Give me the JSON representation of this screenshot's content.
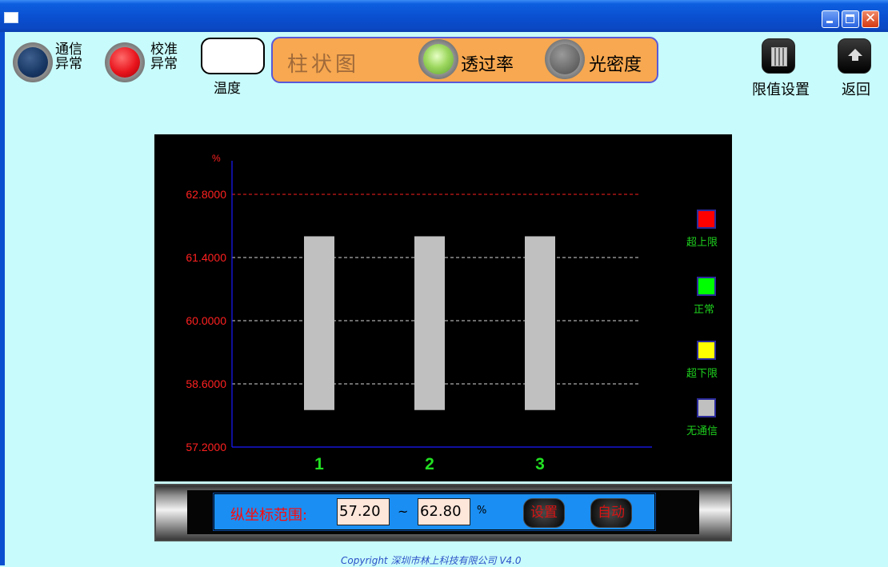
{
  "window": {
    "icons": {
      "system": "window-icon",
      "minimize": "minimize-icon",
      "maximize": "maximize-icon",
      "close": "close-icon",
      "close_glyph": "✕"
    }
  },
  "status": {
    "comm_error": {
      "label_line1": "通信",
      "label_line2": "异常",
      "color": "#1a3966"
    },
    "calib_error": {
      "label_line1": "校准",
      "label_line2": "异常",
      "color": "#e8141c"
    },
    "temperature": {
      "label": "温度",
      "value": ""
    }
  },
  "mode_panel": {
    "title": "柱状图",
    "options": [
      {
        "label": "透过率",
        "selected": true,
        "color": "#9ed860"
      },
      {
        "label": "光密度",
        "selected": false,
        "color": "#6e6e6e"
      }
    ]
  },
  "toolbar": {
    "limit_settings": {
      "label": "限值设置",
      "icon": "calculator-icon"
    },
    "back": {
      "label": "返回",
      "icon": "up-arrow-icon"
    }
  },
  "chart_data": {
    "type": "bar",
    "categories": [
      "1",
      "2",
      "3"
    ],
    "values": [
      61.87,
      61.87,
      61.87
    ],
    "range_bottom": [
      58.02,
      58.02,
      58.02
    ],
    "ylabel": "%",
    "ylim": [
      57.2,
      62.8
    ],
    "yticks": [
      "57.2000",
      "58.6000",
      "60.0000",
      "61.4000",
      "62.8000"
    ],
    "upper_limit_line": 62.8,
    "grid": true,
    "bar_color": "#c0c0c0",
    "background": "#000000"
  },
  "legend": [
    {
      "label": "超上限",
      "color": "#ff0000"
    },
    {
      "label": "正常",
      "color": "#00ff00"
    },
    {
      "label": "超下限",
      "color": "#ffff00"
    },
    {
      "label": "无通信",
      "color": "#c0c0c0"
    }
  ],
  "range_controls": {
    "label": "纵坐标范围:",
    "min": "57.20",
    "separator": "~",
    "max": "62.80",
    "unit": "%",
    "set_button": "设置",
    "auto_button": "自动"
  },
  "footer": {
    "copyright": "Copyright 深圳市林上科技有限公司 V4.0"
  }
}
